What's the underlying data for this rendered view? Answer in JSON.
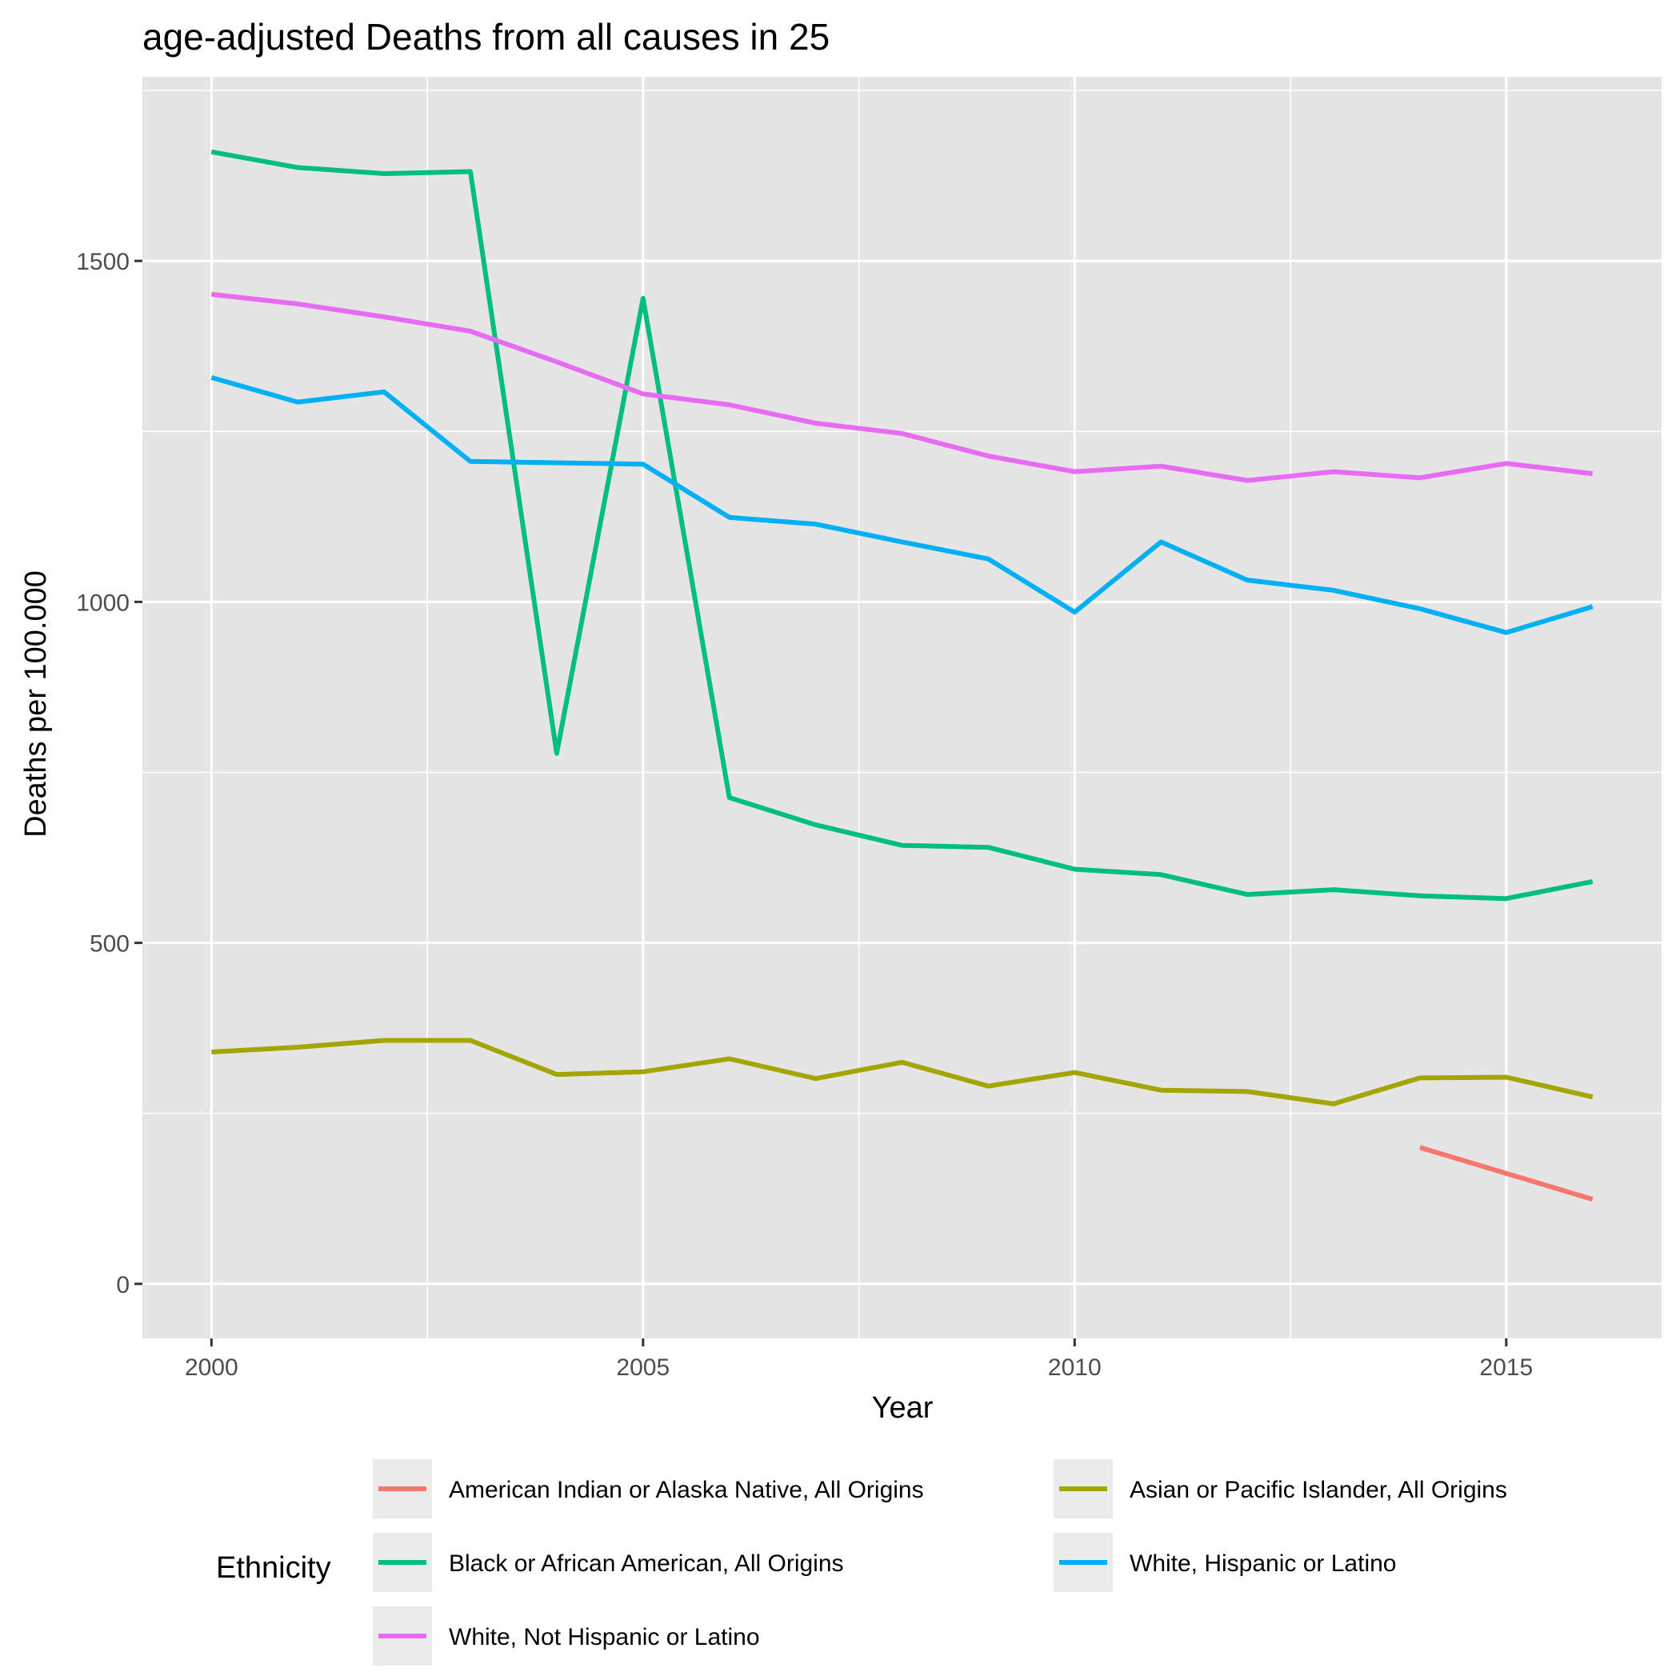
{
  "chart_data": {
    "type": "line",
    "title": "age-adjusted Deaths from all causes in 25",
    "xlabel": "Year",
    "ylabel": "Deaths per 100.000",
    "xlim": [
      1999.2,
      2016.8
    ],
    "ylim": [
      -80,
      1770
    ],
    "x_ticks": [
      2000,
      2005,
      2010,
      2015
    ],
    "x_tick_labels": [
      "2000",
      "2005",
      "2010",
      "2015"
    ],
    "y_ticks": [
      0,
      500,
      1000,
      1500
    ],
    "y_tick_labels": [
      "0",
      "500",
      "1000",
      "1500"
    ],
    "grid": true,
    "background": "#e5e5e5",
    "legend": {
      "title": "Ethnicity",
      "position": "bottom",
      "columns": 2
    },
    "series": [
      {
        "name": "American Indian or Alaska Native, All Origins",
        "color": "#f8766d",
        "x": [
          2014,
          2015,
          2016
        ],
        "y": [
          200,
          162,
          124
        ]
      },
      {
        "name": "Asian or Pacific Islander, All Origins",
        "color": "#a3a500",
        "x": [
          2000,
          2001,
          2002,
          2003,
          2004,
          2005,
          2006,
          2007,
          2008,
          2009,
          2010,
          2011,
          2012,
          2013,
          2014,
          2015,
          2016
        ],
        "y": [
          340,
          347,
          357,
          357,
          307,
          311,
          330,
          301,
          325,
          290,
          310,
          284,
          282,
          264,
          302,
          303,
          274
        ]
      },
      {
        "name": "Black or African American, All Origins",
        "color": "#00bf7d",
        "x": [
          2000,
          2001,
          2002,
          2003,
          2004,
          2005,
          2006,
          2007,
          2008,
          2009,
          2010,
          2011,
          2012,
          2013,
          2014,
          2015,
          2016
        ],
        "y": [
          1660,
          1637,
          1628,
          1631,
          778,
          1445,
          713,
          673,
          643,
          640,
          608,
          600,
          571,
          578,
          569,
          565,
          590
        ]
      },
      {
        "name": "White, Hispanic or Latino",
        "color": "#00b0f6",
        "x": [
          2000,
          2001,
          2002,
          2003,
          2004,
          2005,
          2006,
          2007,
          2008,
          2009,
          2010,
          2011,
          2012,
          2013,
          2014,
          2015,
          2016
        ],
        "y": [
          1329,
          1293,
          1308,
          1206,
          1204,
          1202,
          1124,
          1114,
          1088,
          1063,
          985,
          1088,
          1032,
          1017,
          990,
          955,
          993
        ]
      },
      {
        "name": "White, Not Hispanic or Latino",
        "color": "#e76bf3",
        "x": [
          2000,
          2001,
          2002,
          2003,
          2004,
          2005,
          2006,
          2007,
          2008,
          2009,
          2010,
          2011,
          2012,
          2013,
          2014,
          2015,
          2016
        ],
        "y": [
          1451,
          1437,
          1418,
          1397,
          1352,
          1305,
          1289,
          1262,
          1247,
          1214,
          1191,
          1199,
          1178,
          1191,
          1182,
          1203,
          1188
        ]
      }
    ],
    "legend_order": [
      "American Indian or Alaska Native, All Origins",
      "Asian or Pacific Islander, All Origins",
      "Black or African American, All Origins",
      "White, Hispanic or Latino",
      "White, Not Hispanic or Latino"
    ]
  }
}
